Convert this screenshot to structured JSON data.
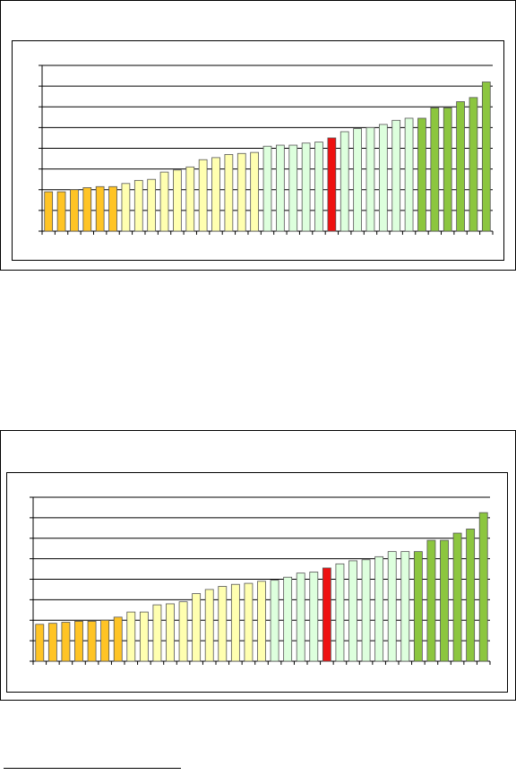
{
  "colors": {
    "orange": "#FFC425",
    "light_yellow": "#FFFFB0",
    "light_green": "#DDFFDD",
    "green": "#8CC63F",
    "red": "#EE1111",
    "bar_edge": "#555555"
  },
  "chart_data": [
    {
      "type": "bar",
      "title": "",
      "xlabel": "",
      "ylabel": "",
      "grid": true,
      "ylim": [
        0,
        8
      ],
      "values": [
        1.9,
        1.9,
        2.0,
        2.1,
        2.15,
        2.15,
        2.3,
        2.45,
        2.5,
        2.85,
        2.95,
        3.1,
        3.45,
        3.55,
        3.7,
        3.75,
        3.8,
        4.1,
        4.15,
        4.15,
        4.25,
        4.3,
        4.5,
        4.8,
        4.95,
        5.0,
        5.15,
        5.35,
        5.45,
        5.45,
        5.95,
        5.95,
        6.25,
        6.45,
        7.2
      ],
      "color_groups": [
        "orange",
        "orange",
        "orange",
        "orange",
        "orange",
        "orange",
        "light_yellow",
        "light_yellow",
        "light_yellow",
        "light_yellow",
        "light_yellow",
        "light_yellow",
        "light_yellow",
        "light_yellow",
        "light_yellow",
        "light_yellow",
        "light_yellow",
        "light_green",
        "light_green",
        "light_green",
        "light_green",
        "light_green",
        "red",
        "light_green",
        "light_green",
        "light_green",
        "light_green",
        "light_green",
        "light_green",
        "green",
        "green",
        "green",
        "green",
        "green",
        "green"
      ]
    },
    {
      "type": "bar",
      "title": "",
      "xlabel": "",
      "ylabel": "",
      "grid": true,
      "ylim": [
        0,
        8
      ],
      "values": [
        1.8,
        1.85,
        1.9,
        1.95,
        1.95,
        2.0,
        2.15,
        2.4,
        2.4,
        2.75,
        2.8,
        2.9,
        3.3,
        3.5,
        3.65,
        3.75,
        3.8,
        3.9,
        3.95,
        4.1,
        4.3,
        4.35,
        4.55,
        4.75,
        4.9,
        4.95,
        5.1,
        5.35,
        5.35,
        5.35,
        5.9,
        5.9,
        6.25,
        6.45,
        7.25
      ],
      "color_groups": [
        "orange",
        "orange",
        "orange",
        "orange",
        "orange",
        "orange",
        "orange",
        "light_yellow",
        "light_yellow",
        "light_yellow",
        "light_yellow",
        "light_yellow",
        "light_yellow",
        "light_yellow",
        "light_yellow",
        "light_yellow",
        "light_yellow",
        "light_yellow",
        "light_green",
        "light_green",
        "light_green",
        "light_green",
        "red",
        "light_green",
        "light_green",
        "light_green",
        "light_green",
        "light_green",
        "light_green",
        "green",
        "green",
        "green",
        "green",
        "green",
        "green"
      ]
    }
  ]
}
